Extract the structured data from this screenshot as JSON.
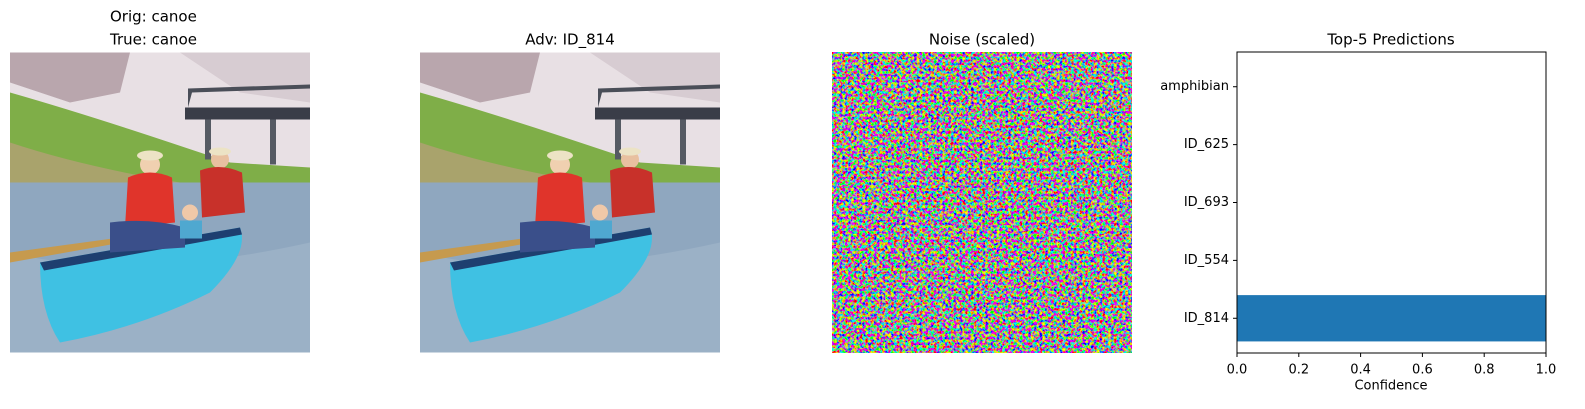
{
  "images": [
    {
      "title": [
        "Orig:  canoe",
        "True:  canoe"
      ]
    },
    {
      "title": [
        "Adv: ID_814"
      ]
    },
    {
      "title": [
        "Noise (scaled)"
      ]
    }
  ],
  "chart_data": {
    "type": "barh",
    "title": "Top-5 Predictions",
    "xlabel": "Confidence",
    "categories": [
      "ID_814",
      "ID_554",
      "ID_693",
      "ID_625",
      "amphibian"
    ],
    "values": [
      1.0,
      0,
      0,
      0,
      0
    ],
    "color": "#1f77b4",
    "xlim": [
      0,
      1
    ],
    "xticks": [
      {
        "value": 0,
        "label": "0.0"
      },
      {
        "value": 0.2,
        "label": "0.2"
      },
      {
        "value": 0.4,
        "label": "0.4"
      },
      {
        "value": 0.6,
        "label": "0.6"
      },
      {
        "value": 0.8,
        "label": "0.8"
      },
      {
        "value": 1,
        "label": "1.0"
      }
    ]
  }
}
